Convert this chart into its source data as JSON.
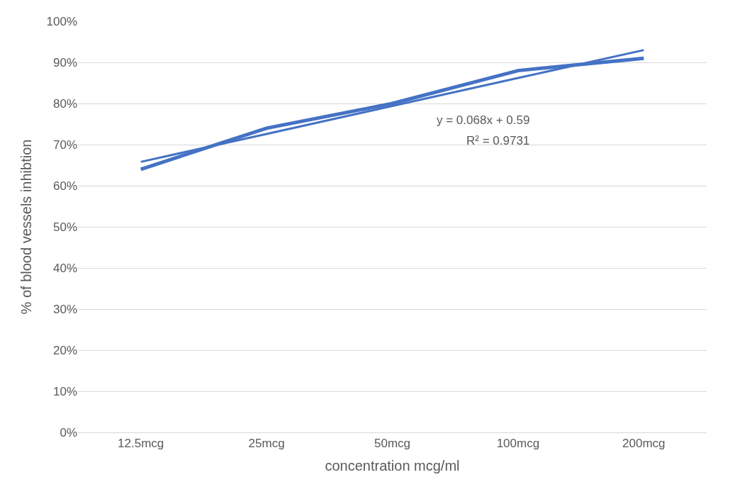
{
  "chart_data": {
    "type": "line",
    "xlabel": "concentration mcg/ml",
    "ylabel": "% of blood vessels inhibtion",
    "categories": [
      "12.5mcg",
      "25mcg",
      "50mcg",
      "100mcg",
      "200mcg"
    ],
    "series": [
      {
        "color": "#4472c4",
        "values": [
          64,
          74,
          80,
          88,
          91
        ]
      },
      {
        "type": "line",
        "color": "#4472c4",
        "values": [
          65.8,
          72.6,
          79.4,
          86.2,
          93.0
        ]
      }
    ],
    "ylim": [
      0,
      100
    ],
    "yticks": [
      {
        "value": 0,
        "label": "0%"
      },
      {
        "value": 10,
        "label": "10%"
      },
      {
        "value": 20,
        "label": "20%"
      },
      {
        "value": 30,
        "label": "30%"
      },
      {
        "value": 40,
        "label": "40%"
      },
      {
        "value": 50,
        "label": "50%"
      },
      {
        "value": 60,
        "label": "60%"
      },
      {
        "value": 70,
        "label": "70%"
      },
      {
        "value": 80,
        "label": "80%"
      },
      {
        "value": 90,
        "label": "90%"
      },
      {
        "value": 100,
        "label": "100%"
      }
    ],
    "grid": "y",
    "marker": "none",
    "line_style": "solid",
    "annotations": [
      "y = 0.068x + 0.59",
      "R² = 0.9731"
    ]
  }
}
